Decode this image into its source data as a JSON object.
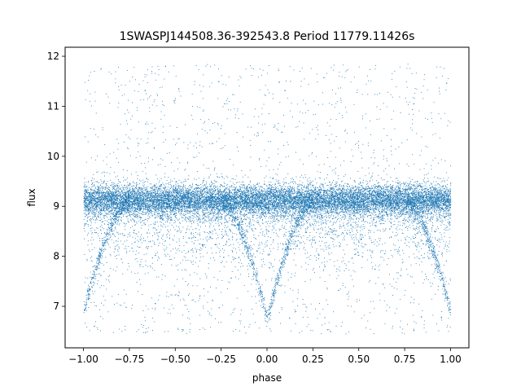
{
  "chart_data": {
    "type": "scatter",
    "title": "1SWASPJ144508.36-392543.8 Period 11779.11426s",
    "xlabel": "phase",
    "ylabel": "flux",
    "xlim": [
      -1.1,
      1.1
    ],
    "ylim": [
      6.17,
      12.18
    ],
    "x_ticks": [
      -1.0,
      -0.75,
      -0.5,
      -0.25,
      0.0,
      0.25,
      0.5,
      0.75,
      1.0
    ],
    "x_tick_labels": [
      "−1.00",
      "−0.75",
      "−0.50",
      "−0.25",
      "0.00",
      "0.25",
      "0.50",
      "0.75",
      "1.00"
    ],
    "y_ticks": [
      7,
      8,
      9,
      10,
      11,
      12
    ],
    "y_tick_labels": [
      "7",
      "8",
      "9",
      "10",
      "11",
      "12"
    ],
    "grid": false,
    "legend": "none",
    "color": "#1f77b4",
    "baseline_flux": 9.12,
    "eclipse_min_flux": [
      {
        "phase": -1.0,
        "flux": 6.9
      },
      {
        "phase": 0.0,
        "flux": 6.75
      },
      {
        "phase": 1.0,
        "flux": 6.9
      }
    ],
    "eclipse_half_width_phase": 0.25,
    "outlier_flux_range": [
      6.45,
      11.85
    ],
    "phase_range": [
      -1.0,
      1.0
    ]
  }
}
